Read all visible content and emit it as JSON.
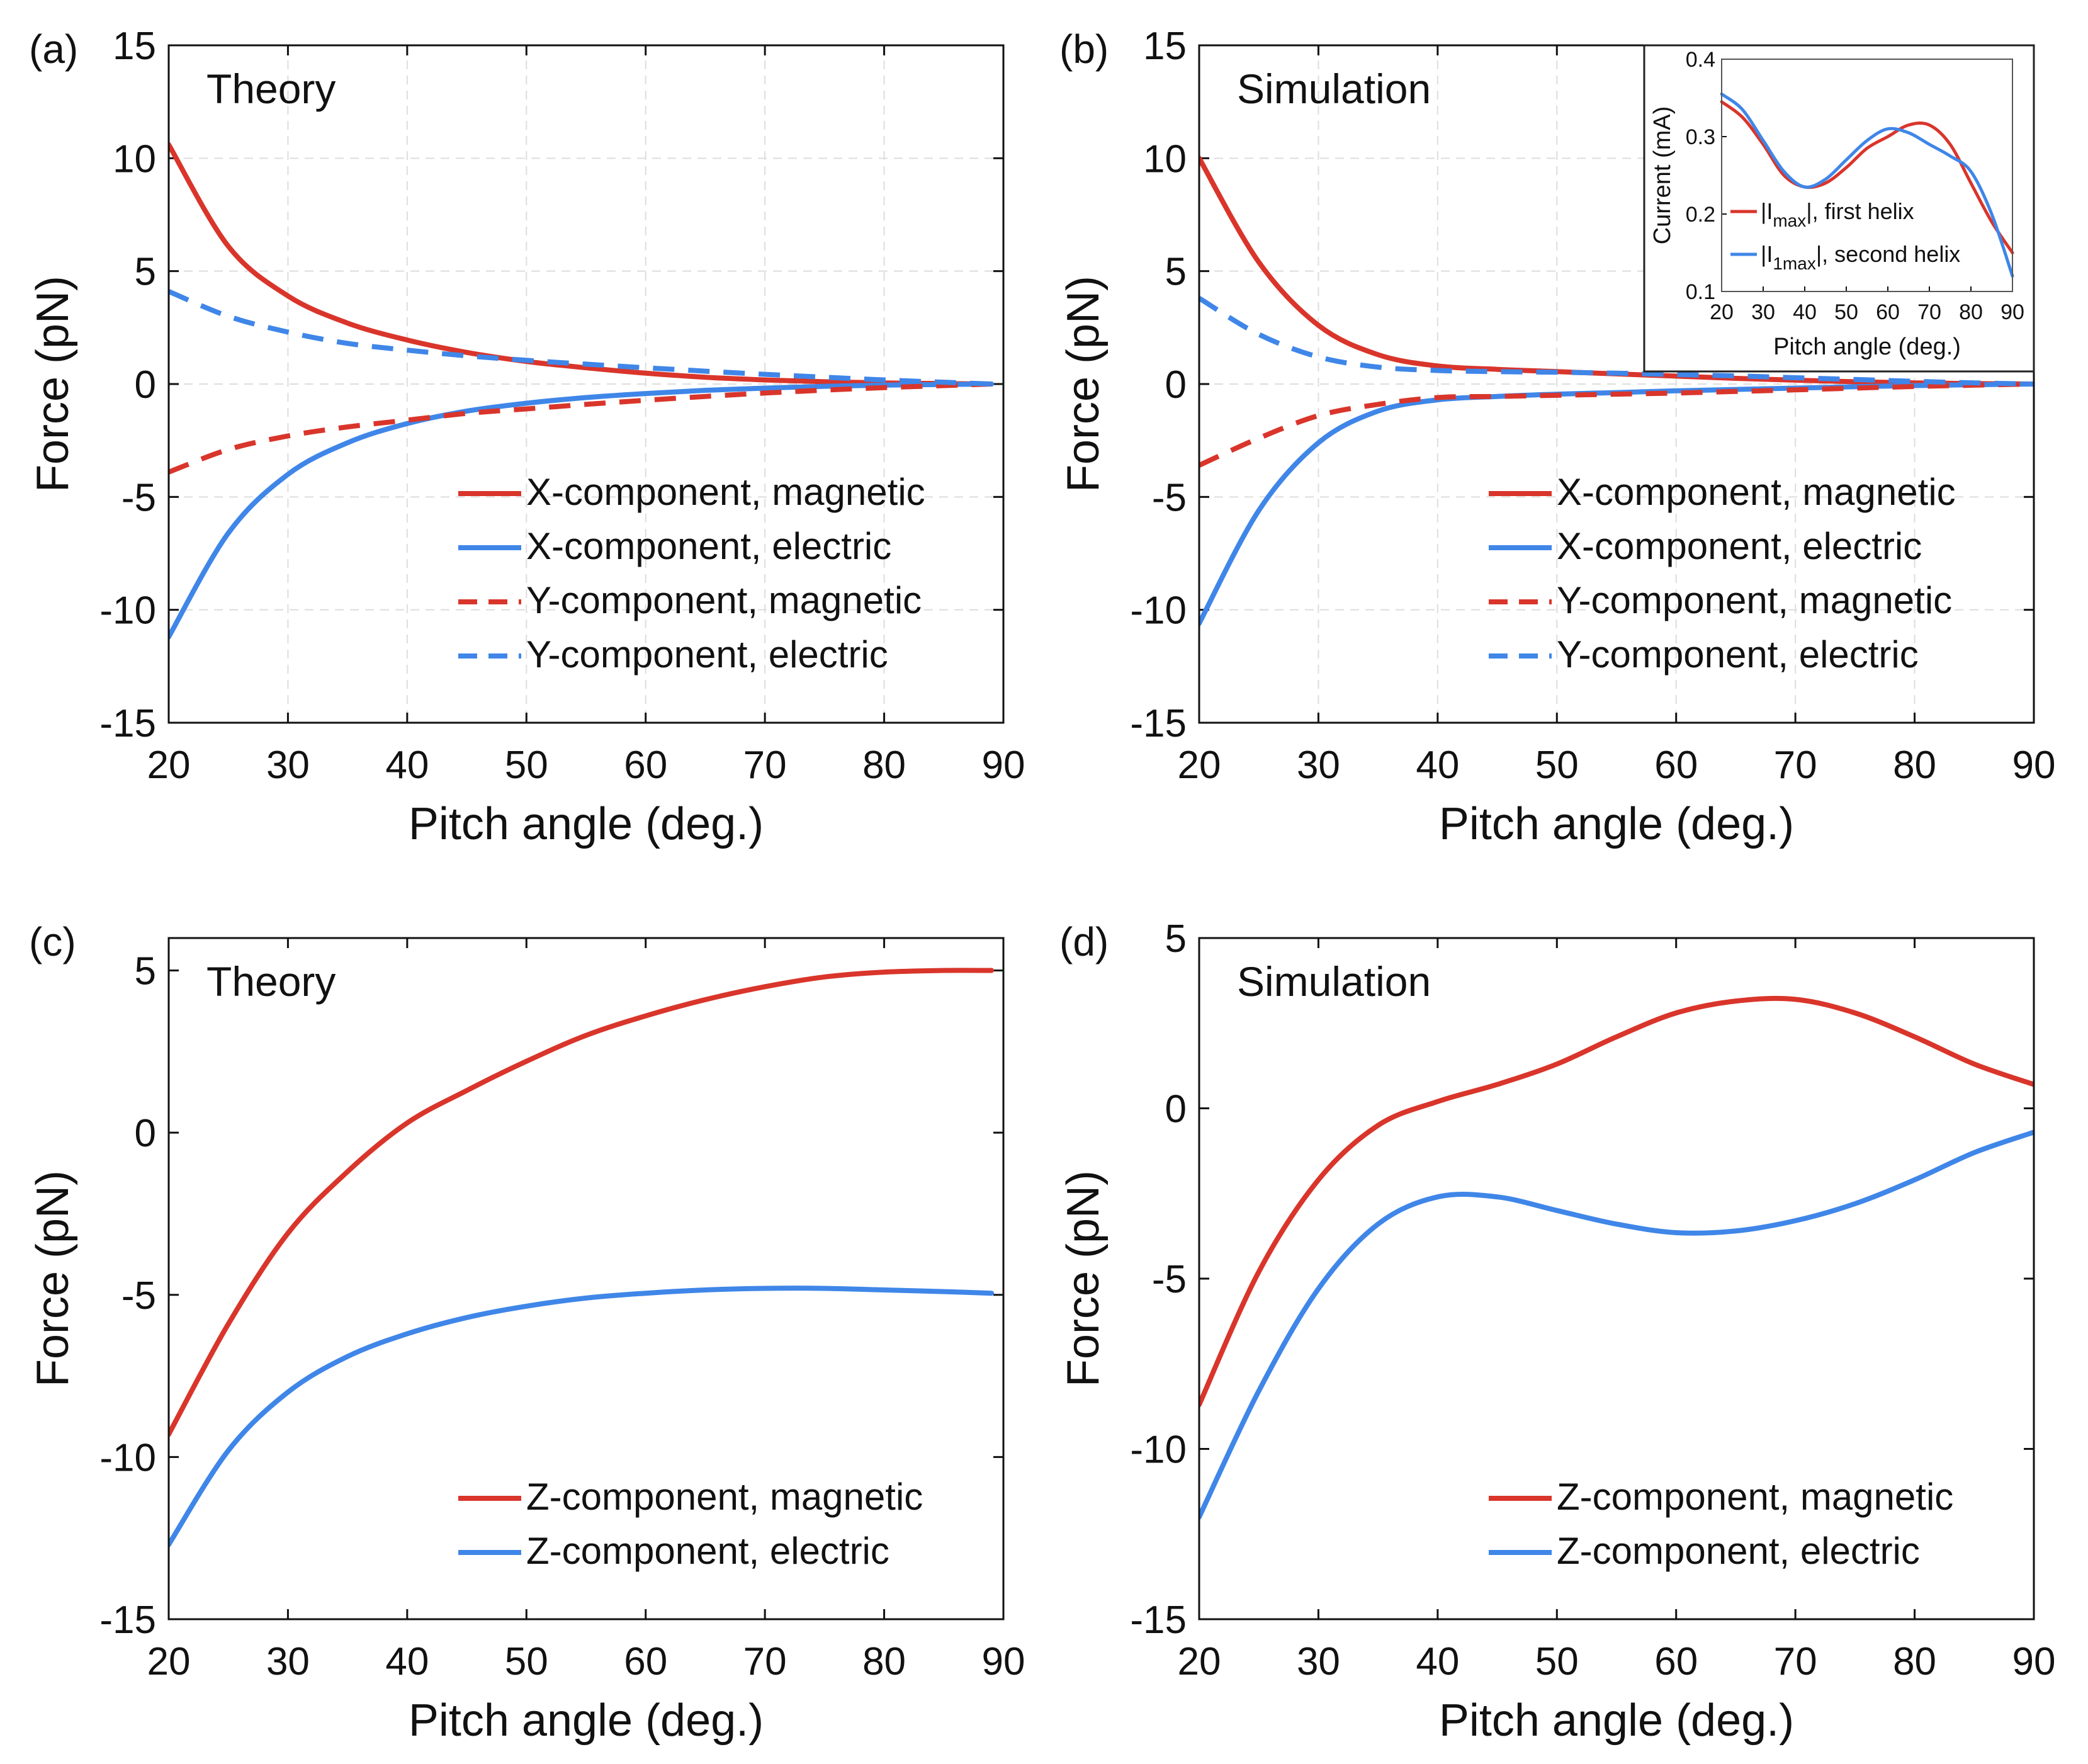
{
  "figure": {
    "colors": {
      "magnetic": "#d9352b",
      "electric": "#3f86e8",
      "axis": "#111111",
      "grid": "#dddddd"
    }
  },
  "chart_data": [
    {
      "id": "a",
      "panel_label": "(a)",
      "title": "Theory",
      "type": "line",
      "xlabel": "Pitch angle (deg.)",
      "ylabel": "Force (pN)",
      "xlim": [
        20,
        90
      ],
      "ylim": [
        -15,
        15
      ],
      "xticks": [
        20,
        30,
        40,
        50,
        60,
        70,
        80,
        90
      ],
      "yticks": [
        15,
        10,
        5,
        0,
        -5,
        -10,
        -15
      ],
      "ytick_labels": [
        "15",
        "10",
        "5",
        "0",
        "-5",
        "-10",
        "-15"
      ],
      "grid": true,
      "legend_position": "bottom-right",
      "x": [
        20,
        25,
        30,
        35,
        40,
        45,
        50,
        55,
        60,
        65,
        70,
        75,
        80,
        85,
        89
      ],
      "series": [
        {
          "name": "X-component, magnetic",
          "color": "magnetic",
          "dash": "solid",
          "values": [
            10.6,
            6.1,
            3.9,
            2.7,
            1.95,
            1.4,
            1.0,
            0.72,
            0.48,
            0.3,
            0.18,
            0.1,
            0.05,
            0.02,
            0.0
          ]
        },
        {
          "name": "X-component, electric",
          "color": "electric",
          "dash": "solid",
          "values": [
            -11.2,
            -6.6,
            -4.0,
            -2.6,
            -1.75,
            -1.2,
            -0.85,
            -0.6,
            -0.42,
            -0.28,
            -0.18,
            -0.1,
            -0.05,
            -0.02,
            0.0
          ]
        },
        {
          "name": "Y-component, magnetic",
          "color": "magnetic",
          "dash": "dashed",
          "values": [
            -3.9,
            -2.9,
            -2.3,
            -1.9,
            -1.6,
            -1.3,
            -1.1,
            -0.9,
            -0.72,
            -0.55,
            -0.4,
            -0.27,
            -0.16,
            -0.07,
            0.0
          ]
        },
        {
          "name": "Y-component, electric",
          "color": "electric",
          "dash": "dashed",
          "values": [
            4.1,
            3.0,
            2.3,
            1.8,
            1.5,
            1.25,
            1.05,
            0.88,
            0.72,
            0.57,
            0.43,
            0.3,
            0.18,
            0.08,
            0.0
          ]
        }
      ]
    },
    {
      "id": "b",
      "panel_label": "(b)",
      "title": "Simulation",
      "type": "line",
      "xlabel": "Pitch angle (deg.)",
      "ylabel": "Force (pN)",
      "xlim": [
        20,
        90
      ],
      "ylim": [
        -15,
        15
      ],
      "xticks": [
        20,
        30,
        40,
        50,
        60,
        70,
        80,
        90
      ],
      "yticks": [
        15,
        10,
        5,
        0,
        -5,
        -10,
        -15
      ],
      "ytick_labels": [
        "15",
        "10",
        "5",
        "0",
        "-5",
        "-10",
        "-15"
      ],
      "grid": true,
      "legend_position": "bottom-right",
      "x": [
        20,
        25,
        30,
        35,
        40,
        45,
        50,
        55,
        60,
        65,
        70,
        75,
        80,
        85,
        90
      ],
      "series": [
        {
          "name": "X-component, magnetic",
          "color": "magnetic",
          "dash": "solid",
          "values": [
            10.0,
            5.4,
            2.6,
            1.3,
            0.8,
            0.65,
            0.55,
            0.45,
            0.35,
            0.25,
            0.17,
            0.1,
            0.05,
            0.02,
            0.0
          ]
        },
        {
          "name": "X-component, electric",
          "color": "electric",
          "dash": "solid",
          "values": [
            -10.6,
            -5.6,
            -2.6,
            -1.2,
            -0.7,
            -0.55,
            -0.45,
            -0.38,
            -0.3,
            -0.24,
            -0.18,
            -0.12,
            -0.07,
            -0.03,
            0.0
          ]
        },
        {
          "name": "Y-component, magnetic",
          "color": "magnetic",
          "dash": "dashed",
          "values": [
            -3.6,
            -2.4,
            -1.4,
            -0.9,
            -0.6,
            -0.55,
            -0.5,
            -0.45,
            -0.4,
            -0.33,
            -0.26,
            -0.18,
            -0.11,
            -0.05,
            0.0
          ]
        },
        {
          "name": "Y-component, electric",
          "color": "electric",
          "dash": "dashed",
          "values": [
            3.8,
            2.2,
            1.2,
            0.75,
            0.6,
            0.55,
            0.52,
            0.48,
            0.42,
            0.36,
            0.28,
            0.2,
            0.12,
            0.05,
            0.0
          ]
        }
      ],
      "inset": {
        "type": "line",
        "xlabel": "Pitch angle (deg.)",
        "ylabel": "Current (mA)",
        "xlim": [
          20,
          90
        ],
        "ylim": [
          0.1,
          0.4
        ],
        "xticks": [
          20,
          30,
          40,
          50,
          60,
          70,
          80,
          90
        ],
        "yticks": [
          0.1,
          0.2,
          0.3,
          0.4
        ],
        "ytick_labels": [
          "0.1",
          "0.2",
          "0.3",
          "0.4"
        ],
        "x": [
          20,
          25,
          30,
          35,
          40,
          45,
          50,
          55,
          60,
          65,
          70,
          75,
          80,
          85,
          90
        ],
        "series": [
          {
            "name": "|I",
            "sub": "max",
            "suffix": "|, first helix",
            "color": "magnetic",
            "values": [
              0.345,
              0.325,
              0.29,
              0.25,
              0.235,
              0.24,
              0.26,
              0.285,
              0.3,
              0.315,
              0.315,
              0.29,
              0.24,
              0.19,
              0.15
            ]
          },
          {
            "name": "|I",
            "sub": "1max",
            "suffix": "|, second helix",
            "color": "electric",
            "values": [
              0.355,
              0.335,
              0.295,
              0.255,
              0.235,
              0.245,
              0.27,
              0.295,
              0.31,
              0.305,
              0.29,
              0.275,
              0.255,
              0.2,
              0.12
            ]
          }
        ]
      }
    },
    {
      "id": "c",
      "panel_label": "(c)",
      "title": "Theory",
      "type": "line",
      "xlabel": "Pitch angle (deg.)",
      "ylabel": "Force (pN)",
      "xlim": [
        20,
        90
      ],
      "ylim": [
        -15,
        6
      ],
      "xticks": [
        20,
        30,
        40,
        50,
        60,
        70,
        80,
        90
      ],
      "yticks": [
        5,
        0,
        -5,
        -10,
        -15
      ],
      "ytick_labels": [
        "5",
        "0",
        "-5",
        "-10",
        "-15"
      ],
      "grid": false,
      "legend_position": "bottom-right",
      "x": [
        20,
        25,
        30,
        35,
        40,
        45,
        50,
        55,
        60,
        65,
        70,
        75,
        80,
        85,
        89
      ],
      "series": [
        {
          "name": "Z-component, magnetic",
          "color": "magnetic",
          "dash": "solid",
          "values": [
            -9.3,
            -5.9,
            -3.1,
            -1.2,
            0.3,
            1.3,
            2.2,
            3.0,
            3.6,
            4.1,
            4.5,
            4.8,
            4.95,
            5.0,
            5.0
          ]
        },
        {
          "name": "Z-component, electric",
          "color": "electric",
          "dash": "solid",
          "values": [
            -12.7,
            -9.8,
            -8.0,
            -6.9,
            -6.2,
            -5.7,
            -5.35,
            -5.1,
            -4.95,
            -4.85,
            -4.8,
            -4.8,
            -4.85,
            -4.9,
            -4.95
          ]
        }
      ]
    },
    {
      "id": "d",
      "panel_label": "(d)",
      "title": "Simulation",
      "type": "line",
      "xlabel": "Pitch angle (deg.)",
      "ylabel": "Force (pN)",
      "xlim": [
        20,
        90
      ],
      "ylim": [
        -15,
        5
      ],
      "xticks": [
        20,
        30,
        40,
        50,
        60,
        70,
        80,
        90
      ],
      "yticks": [
        5,
        0,
        -5,
        -10,
        -15
      ],
      "ytick_labels": [
        "5",
        "0",
        "-5",
        "-10",
        "-15"
      ],
      "grid": false,
      "legend_position": "bottom-right",
      "x": [
        20,
        25,
        30,
        35,
        40,
        45,
        50,
        55,
        60,
        65,
        70,
        75,
        80,
        85,
        90
      ],
      "series": [
        {
          "name": "Z-component, magnetic",
          "color": "magnetic",
          "dash": "solid",
          "values": [
            -8.7,
            -4.8,
            -2.1,
            -0.5,
            0.2,
            0.7,
            1.3,
            2.1,
            2.8,
            3.15,
            3.2,
            2.8,
            2.1,
            1.3,
            0.7
          ]
        },
        {
          "name": "Z-component, electric",
          "color": "electric",
          "dash": "solid",
          "values": [
            -12.0,
            -8.3,
            -5.3,
            -3.4,
            -2.6,
            -2.6,
            -3.0,
            -3.4,
            -3.65,
            -3.6,
            -3.3,
            -2.8,
            -2.1,
            -1.3,
            -0.7
          ]
        }
      ]
    }
  ]
}
